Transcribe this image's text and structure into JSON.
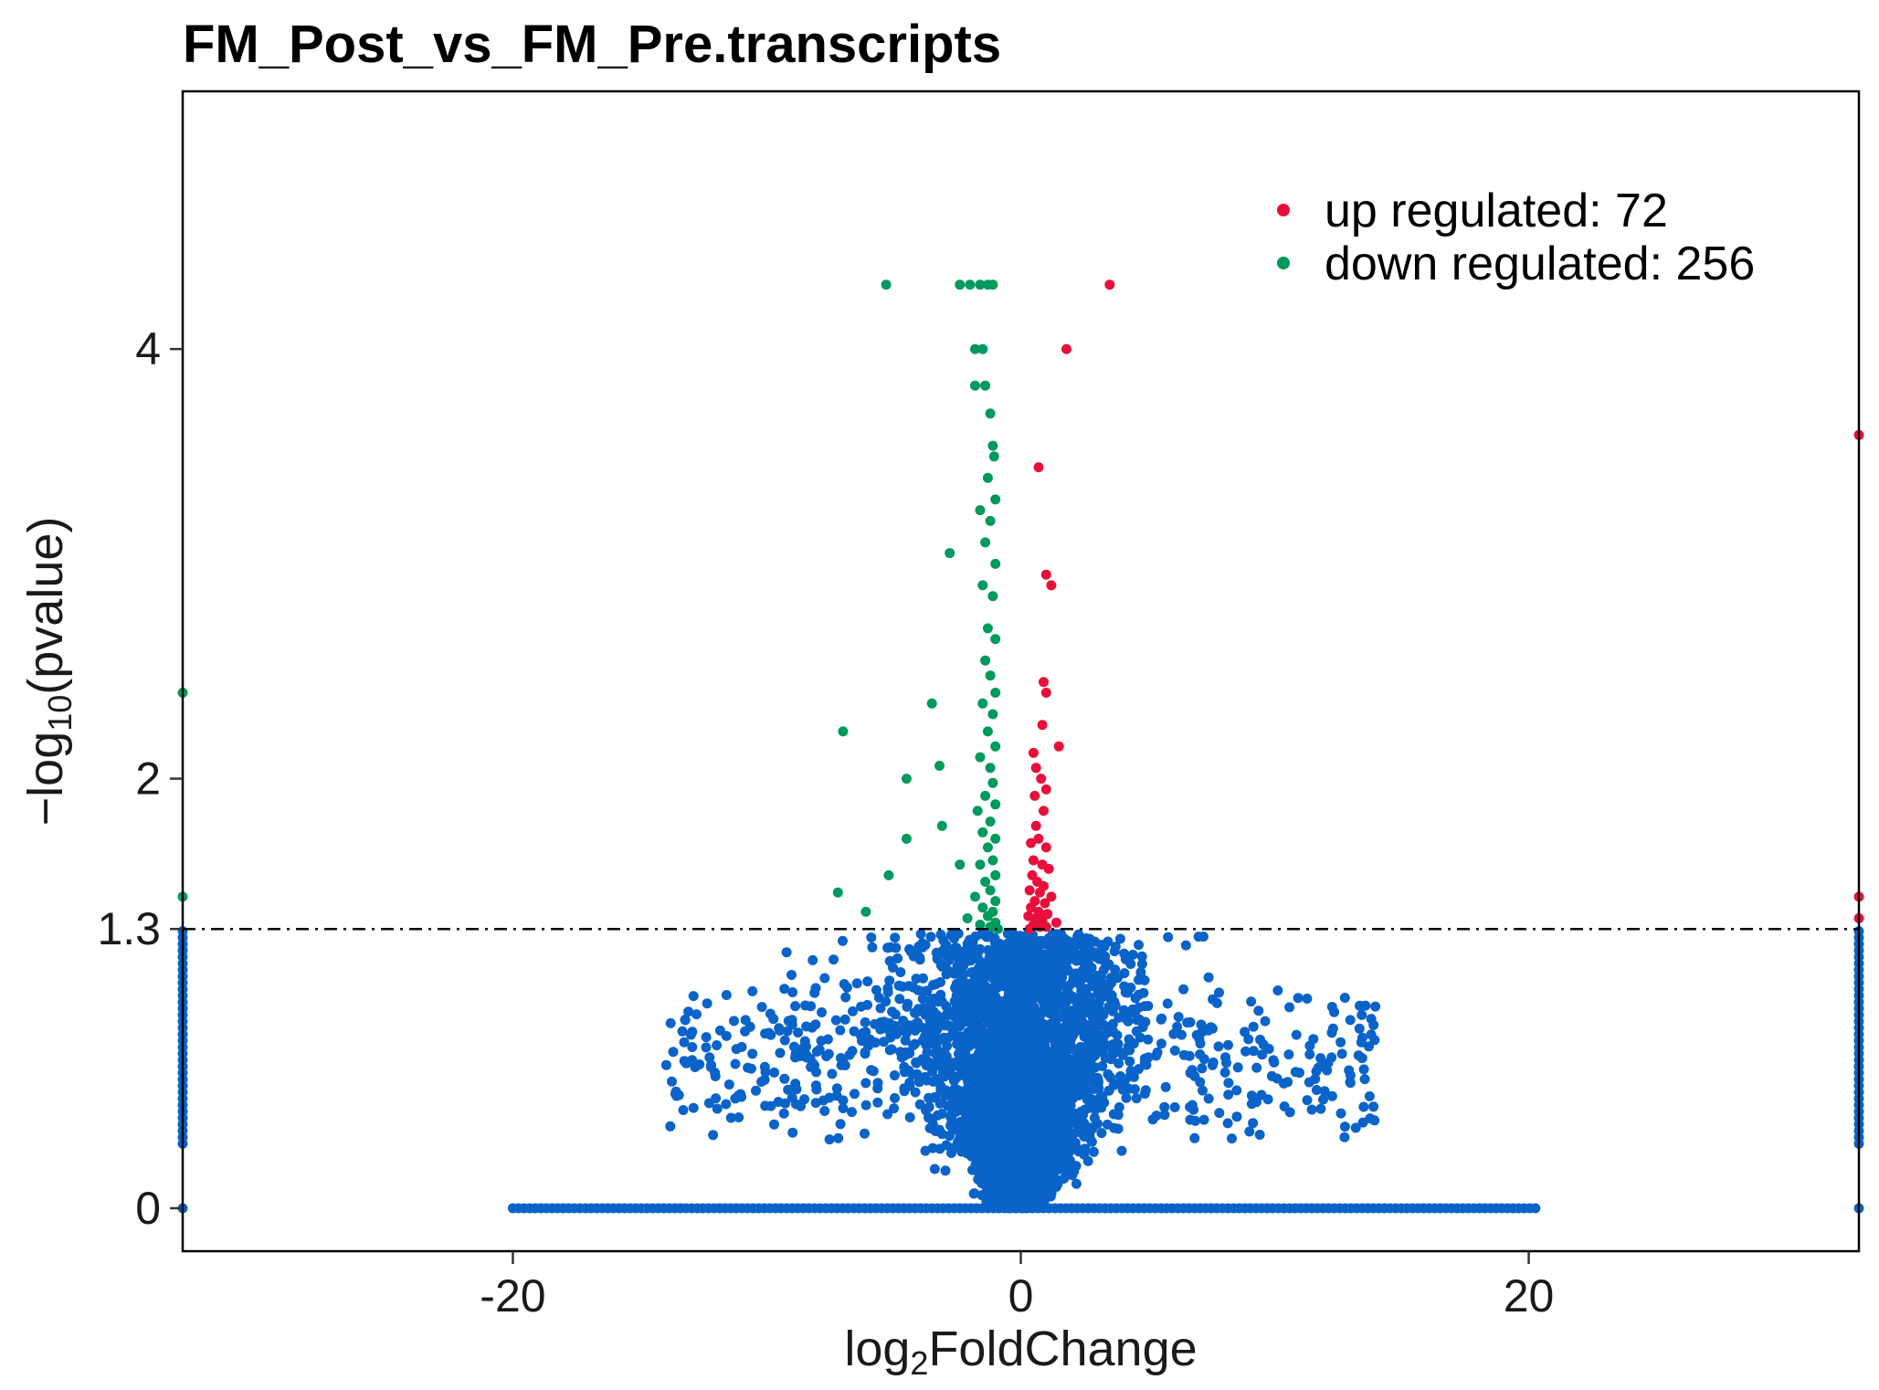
{
  "chart_data": {
    "type": "scatter",
    "title": "FM_Post_vs_FM_Pre.transcripts",
    "xlabel": {
      "base": "log",
      "sub": "2",
      "rest": "FoldChange"
    },
    "ylabel": {
      "pre": "−log",
      "sub": "10",
      "rest": "(pvalue)"
    },
    "xlim": [
      -33,
      33
    ],
    "ylim": [
      -0.2,
      5.2
    ],
    "x_ticks": [
      -20,
      0,
      20
    ],
    "x_tick_labels": [
      "-20",
      "0",
      "20"
    ],
    "y_ticks": [
      0,
      1.3,
      2,
      4
    ],
    "y_tick_labels": [
      "0",
      "1.3",
      "2",
      "4"
    ],
    "threshold": {
      "y": 1.3,
      "style": "dash-dot"
    },
    "grid": false,
    "legend_position": "top-right",
    "colors": {
      "up": "#e8103a",
      "down": "#019a5e",
      "ns": "#0a63c9"
    },
    "series": [
      {
        "name": "up regulated: 72",
        "key": "up",
        "points": [
          [
            3.5,
            4.3
          ],
          [
            1.8,
            4.0
          ],
          [
            0.7,
            3.45
          ],
          [
            1.0,
            2.95
          ],
          [
            1.2,
            2.9
          ],
          [
            0.9,
            2.45
          ],
          [
            1.0,
            2.4
          ],
          [
            0.85,
            2.25
          ],
          [
            1.5,
            2.15
          ],
          [
            0.5,
            2.12
          ],
          [
            0.6,
            2.05
          ],
          [
            0.8,
            2.0
          ],
          [
            1.0,
            1.95
          ],
          [
            0.55,
            1.92
          ],
          [
            0.9,
            1.85
          ],
          [
            0.6,
            1.78
          ],
          [
            0.7,
            1.72
          ],
          [
            0.4,
            1.7
          ],
          [
            1.0,
            1.68
          ],
          [
            0.5,
            1.62
          ],
          [
            0.85,
            1.6
          ],
          [
            1.1,
            1.58
          ],
          [
            0.45,
            1.55
          ],
          [
            0.65,
            1.52
          ],
          [
            0.9,
            1.5
          ],
          [
            0.35,
            1.48
          ],
          [
            0.75,
            1.47
          ],
          [
            1.2,
            1.45
          ],
          [
            0.55,
            1.43
          ],
          [
            0.95,
            1.42
          ],
          [
            0.4,
            1.4
          ],
          [
            0.7,
            1.38
          ],
          [
            1.05,
            1.37
          ],
          [
            0.3,
            1.36
          ],
          [
            0.6,
            1.35
          ],
          [
            0.85,
            1.34
          ],
          [
            1.4,
            1.33
          ],
          [
            0.5,
            1.32
          ],
          [
            0.75,
            1.31
          ],
          [
            1.0,
            1.31
          ],
          [
            0.35,
            1.3
          ],
          [
            33,
            3.6
          ],
          [
            33,
            1.45
          ],
          [
            33,
            1.35
          ]
        ]
      },
      {
        "name": "down regulated: 256",
        "key": "down",
        "points": [
          [
            -5.3,
            4.3
          ],
          [
            -2.4,
            4.3
          ],
          [
            -2.0,
            4.3
          ],
          [
            -1.6,
            4.3
          ],
          [
            -1.3,
            4.3
          ],
          [
            -1.1,
            4.3
          ],
          [
            -1.8,
            4.0
          ],
          [
            -1.5,
            4.0
          ],
          [
            -1.4,
            3.83
          ],
          [
            -1.8,
            3.83
          ],
          [
            -1.2,
            3.7
          ],
          [
            -1.1,
            3.55
          ],
          [
            -1.05,
            3.5
          ],
          [
            -1.3,
            3.4
          ],
          [
            -1.0,
            3.3
          ],
          [
            -1.6,
            3.25
          ],
          [
            -1.2,
            3.2
          ],
          [
            -1.4,
            3.1
          ],
          [
            -1.0,
            3.0
          ],
          [
            -2.8,
            3.05
          ],
          [
            -1.5,
            2.9
          ],
          [
            -1.1,
            2.85
          ],
          [
            -1.3,
            2.7
          ],
          [
            -1.0,
            2.65
          ],
          [
            -1.4,
            2.55
          ],
          [
            -1.2,
            2.48
          ],
          [
            -1.0,
            2.4
          ],
          [
            -1.5,
            2.35
          ],
          [
            -3.5,
            2.35
          ],
          [
            -1.1,
            2.3
          ],
          [
            -1.3,
            2.22
          ],
          [
            -7.0,
            2.22
          ],
          [
            -1.0,
            2.15
          ],
          [
            -1.6,
            2.1
          ],
          [
            -1.2,
            2.05
          ],
          [
            -3.2,
            2.06
          ],
          [
            -4.5,
            2.0
          ],
          [
            -1.1,
            1.98
          ],
          [
            -1.4,
            1.92
          ],
          [
            -1.0,
            1.88
          ],
          [
            -1.7,
            1.85
          ],
          [
            -1.2,
            1.8
          ],
          [
            -1.5,
            1.75
          ],
          [
            -3.1,
            1.78
          ],
          [
            -1.0,
            1.72
          ],
          [
            -1.3,
            1.68
          ],
          [
            -4.5,
            1.72
          ],
          [
            -1.1,
            1.62
          ],
          [
            -1.6,
            1.6
          ],
          [
            -2.4,
            1.6
          ],
          [
            -1.0,
            1.55
          ],
          [
            -1.4,
            1.52
          ],
          [
            -5.2,
            1.55
          ],
          [
            -1.2,
            1.48
          ],
          [
            -1.8,
            1.45
          ],
          [
            -1.0,
            1.43
          ],
          [
            -7.2,
            1.47
          ],
          [
            -1.5,
            1.4
          ],
          [
            -1.1,
            1.38
          ],
          [
            -6.1,
            1.38
          ],
          [
            -1.3,
            1.36
          ],
          [
            -2.1,
            1.35
          ],
          [
            -1.0,
            1.33
          ],
          [
            -1.6,
            1.32
          ],
          [
            -1.2,
            1.31
          ],
          [
            -0.9,
            1.3
          ],
          [
            -33,
            1.45
          ],
          [
            -33,
            2.4
          ]
        ]
      },
      {
        "name": "",
        "key": "ns",
        "generated": true
      }
    ]
  },
  "legend": {
    "up_label": "up regulated: 72",
    "down_label": "down regulated: 256"
  }
}
